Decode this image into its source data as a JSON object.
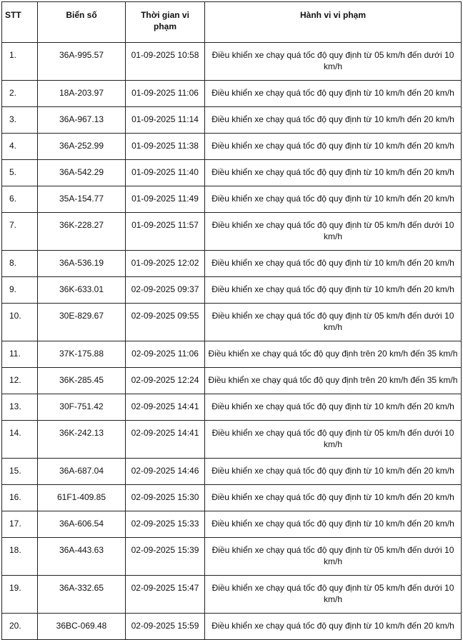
{
  "table": {
    "headers": [
      "STT",
      "Biển số",
      "Thời gian vi phạm",
      "Hành vi vi phạm"
    ],
    "rows": [
      [
        "1.",
        "36A-995.57",
        "01-09-2025 10:58",
        "Điều khiển xe chạy quá tốc độ quy định từ 05 km/h đến dưới 10 km/h"
      ],
      [
        "2.",
        "18A-203.97",
        "01-09-2025 11:06",
        "Điều khiển xe chạy quá tốc độ quy định từ 10 km/h đến 20 km/h"
      ],
      [
        "3.",
        "36A-967.13",
        "01-09-2025 11:14",
        "Điều khiển xe chạy quá tốc độ quy định từ 10 km/h đến 20 km/h"
      ],
      [
        "4.",
        "36A-252.99",
        "01-09-2025 11:38",
        "Điều khiển xe chạy quá tốc độ quy định từ 10 km/h đến 20 km/h"
      ],
      [
        "5.",
        "36A-542.29",
        "01-09-2025 11:40",
        "Điều khiển xe chạy quá tốc độ quy định từ 10 km/h đến 20 km/h"
      ],
      [
        "6.",
        "35A-154.77",
        "01-09-2025 11:49",
        "Điều khiển xe chạy quá tốc độ quy định từ 10 km/h đến 20 km/h"
      ],
      [
        "7.",
        "36K-228.27",
        "01-09-2025 11:57",
        "Điều khiển xe chạy quá tốc độ quy định từ 05 km/h đến dưới 10 km/h"
      ],
      [
        "8.",
        "36A-536.19",
        "01-09-2025 12:02",
        "Điều khiển xe chạy quá tốc độ quy định từ 10 km/h đến 20 km/h"
      ],
      [
        "9.",
        "36K-633.01",
        "02-09-2025 09:37",
        "Điều khiển xe chạy quá tốc độ quy định từ 10 km/h đến 20 km/h"
      ],
      [
        "10.",
        "30E-829.67",
        "02-09-2025 09:55",
        "Điều khiển xe chạy quá tốc độ quy định từ 05 km/h đến dưới 10 km/h"
      ],
      [
        "11.",
        "37K-175.88",
        "02-09-2025 11:06",
        "Điều khiển xe chạy quá tốc độ quy định trên 20 km/h đến 35 km/h"
      ],
      [
        "12.",
        "36K-285.45",
        "02-09-2025 12:24",
        "Điều khiển xe chạy quá tốc độ quy định trên 20 km/h đến 35 km/h"
      ],
      [
        "13.",
        "30F-751.42",
        "02-09-2025 14:41",
        "Điều khiển xe chạy quá tốc độ quy định từ 10 km/h đến 20 km/h"
      ],
      [
        "14.",
        "36K-242.13",
        "02-09-2025 14:41",
        "Điều khiển xe chạy quá tốc độ quy định từ 05 km/h đến dưới 10 km/h"
      ],
      [
        "15.",
        "36A-687.04",
        "02-09-2025 14:46",
        "Điều khiển xe chạy quá tốc độ quy định từ 10 km/h đến 20 km/h"
      ],
      [
        "16.",
        "61F1-409.85",
        "02-09-2025 15:30",
        "Điều khiển xe chạy quá tốc độ quy định từ 10 km/h đến 20 km/h"
      ],
      [
        "17.",
        "36A-606.54",
        "02-09-2025 15:33",
        "Điều khiển xe chạy quá tốc độ quy định từ 10 km/h đến 20 km/h"
      ],
      [
        "18.",
        "36A-443.63",
        "02-09-2025 15:39",
        "Điều khiển xe chạy quá tốc độ quy định từ 05 km/h đến dưới 10 km/h"
      ],
      [
        "19.",
        "36A-332.65",
        "02-09-2025 15:47",
        "Điều khiển xe chạy quá tốc độ quy định từ 05 km/h đến dưới 10 km/h"
      ],
      [
        "20.",
        "36BC-069.48",
        "02-09-2025 15:59",
        "Điều khiển xe chạy quá tốc độ quy định từ 10 km/h đến 20 km/h"
      ]
    ]
  }
}
